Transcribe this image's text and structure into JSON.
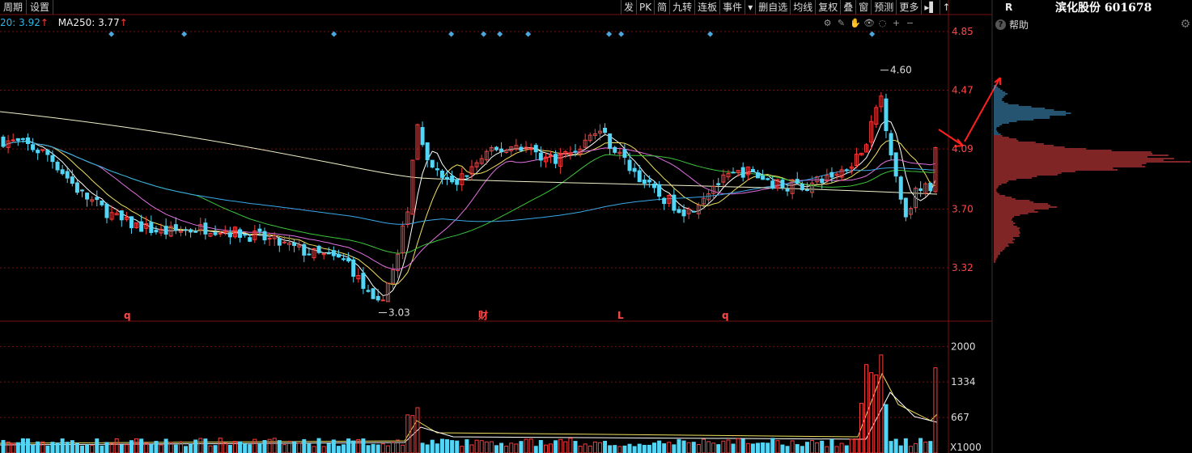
{
  "topbar": {
    "items": [
      "周期",
      "设置"
    ]
  },
  "toolbar": {
    "items": [
      "发",
      "PK",
      "简",
      "九转",
      "连板",
      "事件",
      "▾",
      "删自选",
      "均线",
      "复权",
      "叠",
      "窗",
      "预测",
      "更多",
      "▸▌",
      "↑"
    ]
  },
  "ma_legend": {
    "ma20_label": "20: 3.92",
    "ma20_arrow": "↑",
    "ma250_label": "MA250: 3.77",
    "ma250_arrow": "↑"
  },
  "chart_icons": [
    "⚙",
    "✎",
    "✋",
    "👁",
    "◌",
    "+",
    "−"
  ],
  "right_panel": {
    "label": "R",
    "stock_title": "滨化股份 601678",
    "help_label": "帮助",
    "help_icon": "?",
    "gear_icon": "⚙"
  },
  "colors": {
    "up": "#ff3b3b",
    "down": "#53d6f5",
    "grid": "#7a1010",
    "ma_yellow": "#f0e060",
    "ma_white": "#ffffff",
    "ma_pink": "#e070e0",
    "ma_green": "#3cc43c",
    "ma_blue": "#3aa8e8",
    "ma250": "#f0f0c8"
  },
  "chart_data": {
    "type": "candlestick",
    "price_axis": {
      "ticks": [
        "4.85",
        "4.47",
        "4.09",
        "3.70",
        "3.32"
      ],
      "values": [
        4.85,
        4.47,
        4.09,
        3.7,
        3.32
      ],
      "range": [
        2.98,
        4.96
      ]
    },
    "annotations": {
      "high": "4.60",
      "low": "3.03"
    },
    "event_markers": [
      "q",
      "财",
      "L",
      "q"
    ],
    "volume_axis": {
      "ticks": [
        "2000",
        "1334",
        "667"
      ],
      "values": [
        2000,
        1334,
        667
      ],
      "unit": "X1000",
      "range": [
        0,
        2400
      ]
    }
  }
}
